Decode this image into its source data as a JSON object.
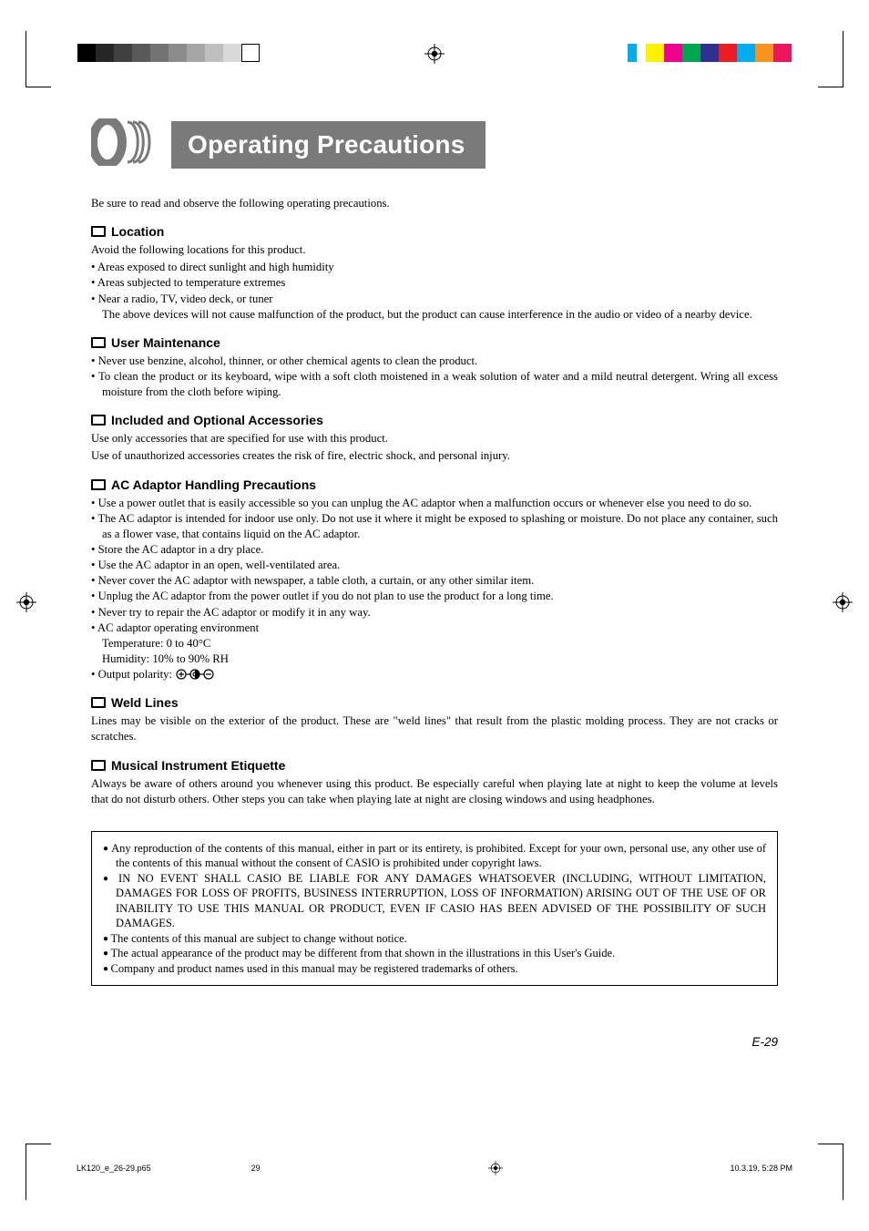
{
  "colors": {
    "title_bg": "#7a7a7a",
    "title_fg": "#ffffff",
    "text": "#000000",
    "page_bg": "#ffffff",
    "left_bar": [
      "#000000",
      "#262626",
      "#404040",
      "#595959",
      "#737373",
      "#8c8c8c",
      "#a6a6a6",
      "#bfbfbf",
      "#d9d9d9"
    ],
    "right_bar": [
      "#00aeef",
      "#ffffff",
      "#fff200",
      "#ec008c",
      "#00a651",
      "#2e3192",
      "#ed1c24",
      "#00aeef",
      "#f7941d",
      "#ed145b"
    ]
  },
  "typography": {
    "body_font": "Palatino/serif",
    "heading_font": "Arial/sans-serif",
    "title_fontsize_pt": 21,
    "heading_fontsize_pt": 10.5,
    "body_fontsize_pt": 9.5
  },
  "title": "Operating Precautions",
  "intro": "Be sure to read and observe the following operating precautions.",
  "sections": [
    {
      "heading": "Location",
      "lead": "Avoid the following locations for this product.",
      "bullets": [
        "Areas exposed to direct sunlight and high humidity",
        "Areas subjected to temperature extremes",
        "Near a radio, TV, video deck, or tuner"
      ],
      "bullet_cont": "The above devices will not cause malfunction of the product, but the product can cause interference in the audio or video of a nearby device."
    },
    {
      "heading": "User Maintenance",
      "bullets": [
        "Never use benzine, alcohol, thinner, or other chemical agents to clean the product.",
        "To clean the product or its keyboard, wipe with a soft cloth moistened in a weak solution of water and a mild neutral detergent. Wring all excess moisture from the cloth before wiping."
      ]
    },
    {
      "heading": "Included and Optional Accessories",
      "paras": [
        "Use only accessories that are specified for use with this product.",
        "Use of unauthorized accessories creates the risk of fire, electric shock, and personal injury."
      ]
    },
    {
      "heading": "AC Adaptor Handling Precautions",
      "bullets": [
        "Use a power outlet that is easily accessible so you can unplug the AC adaptor when a malfunction occurs or whenever else you need to do so.",
        "The AC adaptor is intended for indoor use only. Do not use it where it might be exposed to splashing or moisture. Do not place any container, such as a flower vase, that contains liquid on the AC adaptor.",
        "Store the AC adaptor in a dry place.",
        "Use the AC adaptor in an open, well-ventilated area.",
        "Never cover the AC adaptor with newspaper, a table cloth, a curtain, or any other similar item.",
        "Unplug the AC adaptor from the power outlet if you do not plan to use the product for a long time.",
        "Never try to repair the AC adaptor or modify it in any way.",
        "AC adaptor operating environment"
      ],
      "env_lines": [
        "Temperature: 0 to 40°C",
        "Humidity: 10% to 90% RH"
      ],
      "polarity_label": "Output polarity:"
    },
    {
      "heading": "Weld Lines",
      "paras": [
        "Lines may be visible on the exterior of the product. These are \"weld lines\" that result from the plastic molding process. They are not cracks or scratches."
      ]
    },
    {
      "heading": "Musical Instrument Etiquette",
      "paras": [
        "Always be aware of others around you whenever using this product. Be especially careful when playing late at night to keep the volume at levels that do not disturb others. Other steps you can take when playing late at night are closing windows and using headphones."
      ]
    }
  ],
  "legal": [
    "Any reproduction of the contents of this manual, either in part or its entirety, is prohibited. Except for your own, personal use, any other use of the contents of this manual without the consent of CASIO is prohibited under copyright laws.",
    "IN NO EVENT SHALL CASIO BE LIABLE FOR ANY DAMAGES WHATSOEVER (INCLUDING, WITHOUT LIMITATION, DAMAGES FOR LOSS OF PROFITS, BUSINESS INTERRUPTION, LOSS OF INFORMATION) ARISING OUT OF THE USE OF OR INABILITY TO USE THIS MANUAL OR PRODUCT, EVEN IF CASIO HAS BEEN ADVISED OF THE POSSIBILITY OF SUCH DAMAGES.",
    "The contents of this manual are subject to change without notice.",
    "The actual appearance of the product may be different from that shown in the illustrations in this User's Guide.",
    "Company and product names used in this manual may be registered trademarks of others."
  ],
  "page_number": "E-29",
  "footer": {
    "file": "LK120_e_26-29.p65",
    "page": "29",
    "date": "10.3.19, 5:28 PM"
  }
}
